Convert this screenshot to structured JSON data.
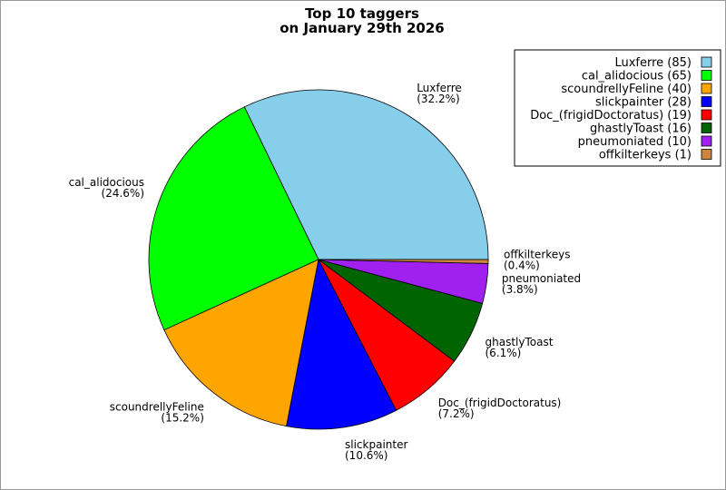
{
  "chart_data": {
    "type": "pie",
    "title": [
      "Top 10 taggers",
      "on January 29th 2026"
    ],
    "legend_position": "top-right",
    "slices": [
      {
        "name": "Luxferre",
        "value": 85,
        "percent": "32.2%",
        "color": "#87ceeb"
      },
      {
        "name": "cal_alidocious",
        "value": 65,
        "percent": "24.6%",
        "color": "#00ff00"
      },
      {
        "name": "scoundrellyFeline",
        "value": 40,
        "percent": "15.2%",
        "color": "#ffa500"
      },
      {
        "name": "slickpainter",
        "value": 28,
        "percent": "10.6%",
        "color": "#0000ff"
      },
      {
        "name": "Doc_(frigidDoctoratus)",
        "value": 19,
        "percent": "7.2%",
        "color": "#ff0000"
      },
      {
        "name": "ghastlyToast",
        "value": 16,
        "percent": "6.1%",
        "color": "#006400"
      },
      {
        "name": "pneumoniated",
        "value": 10,
        "percent": "3.8%",
        "color": "#a020f0"
      },
      {
        "name": "offkilterkeys",
        "value": 1,
        "percent": "0.4%",
        "color": "#cd853f"
      }
    ]
  }
}
